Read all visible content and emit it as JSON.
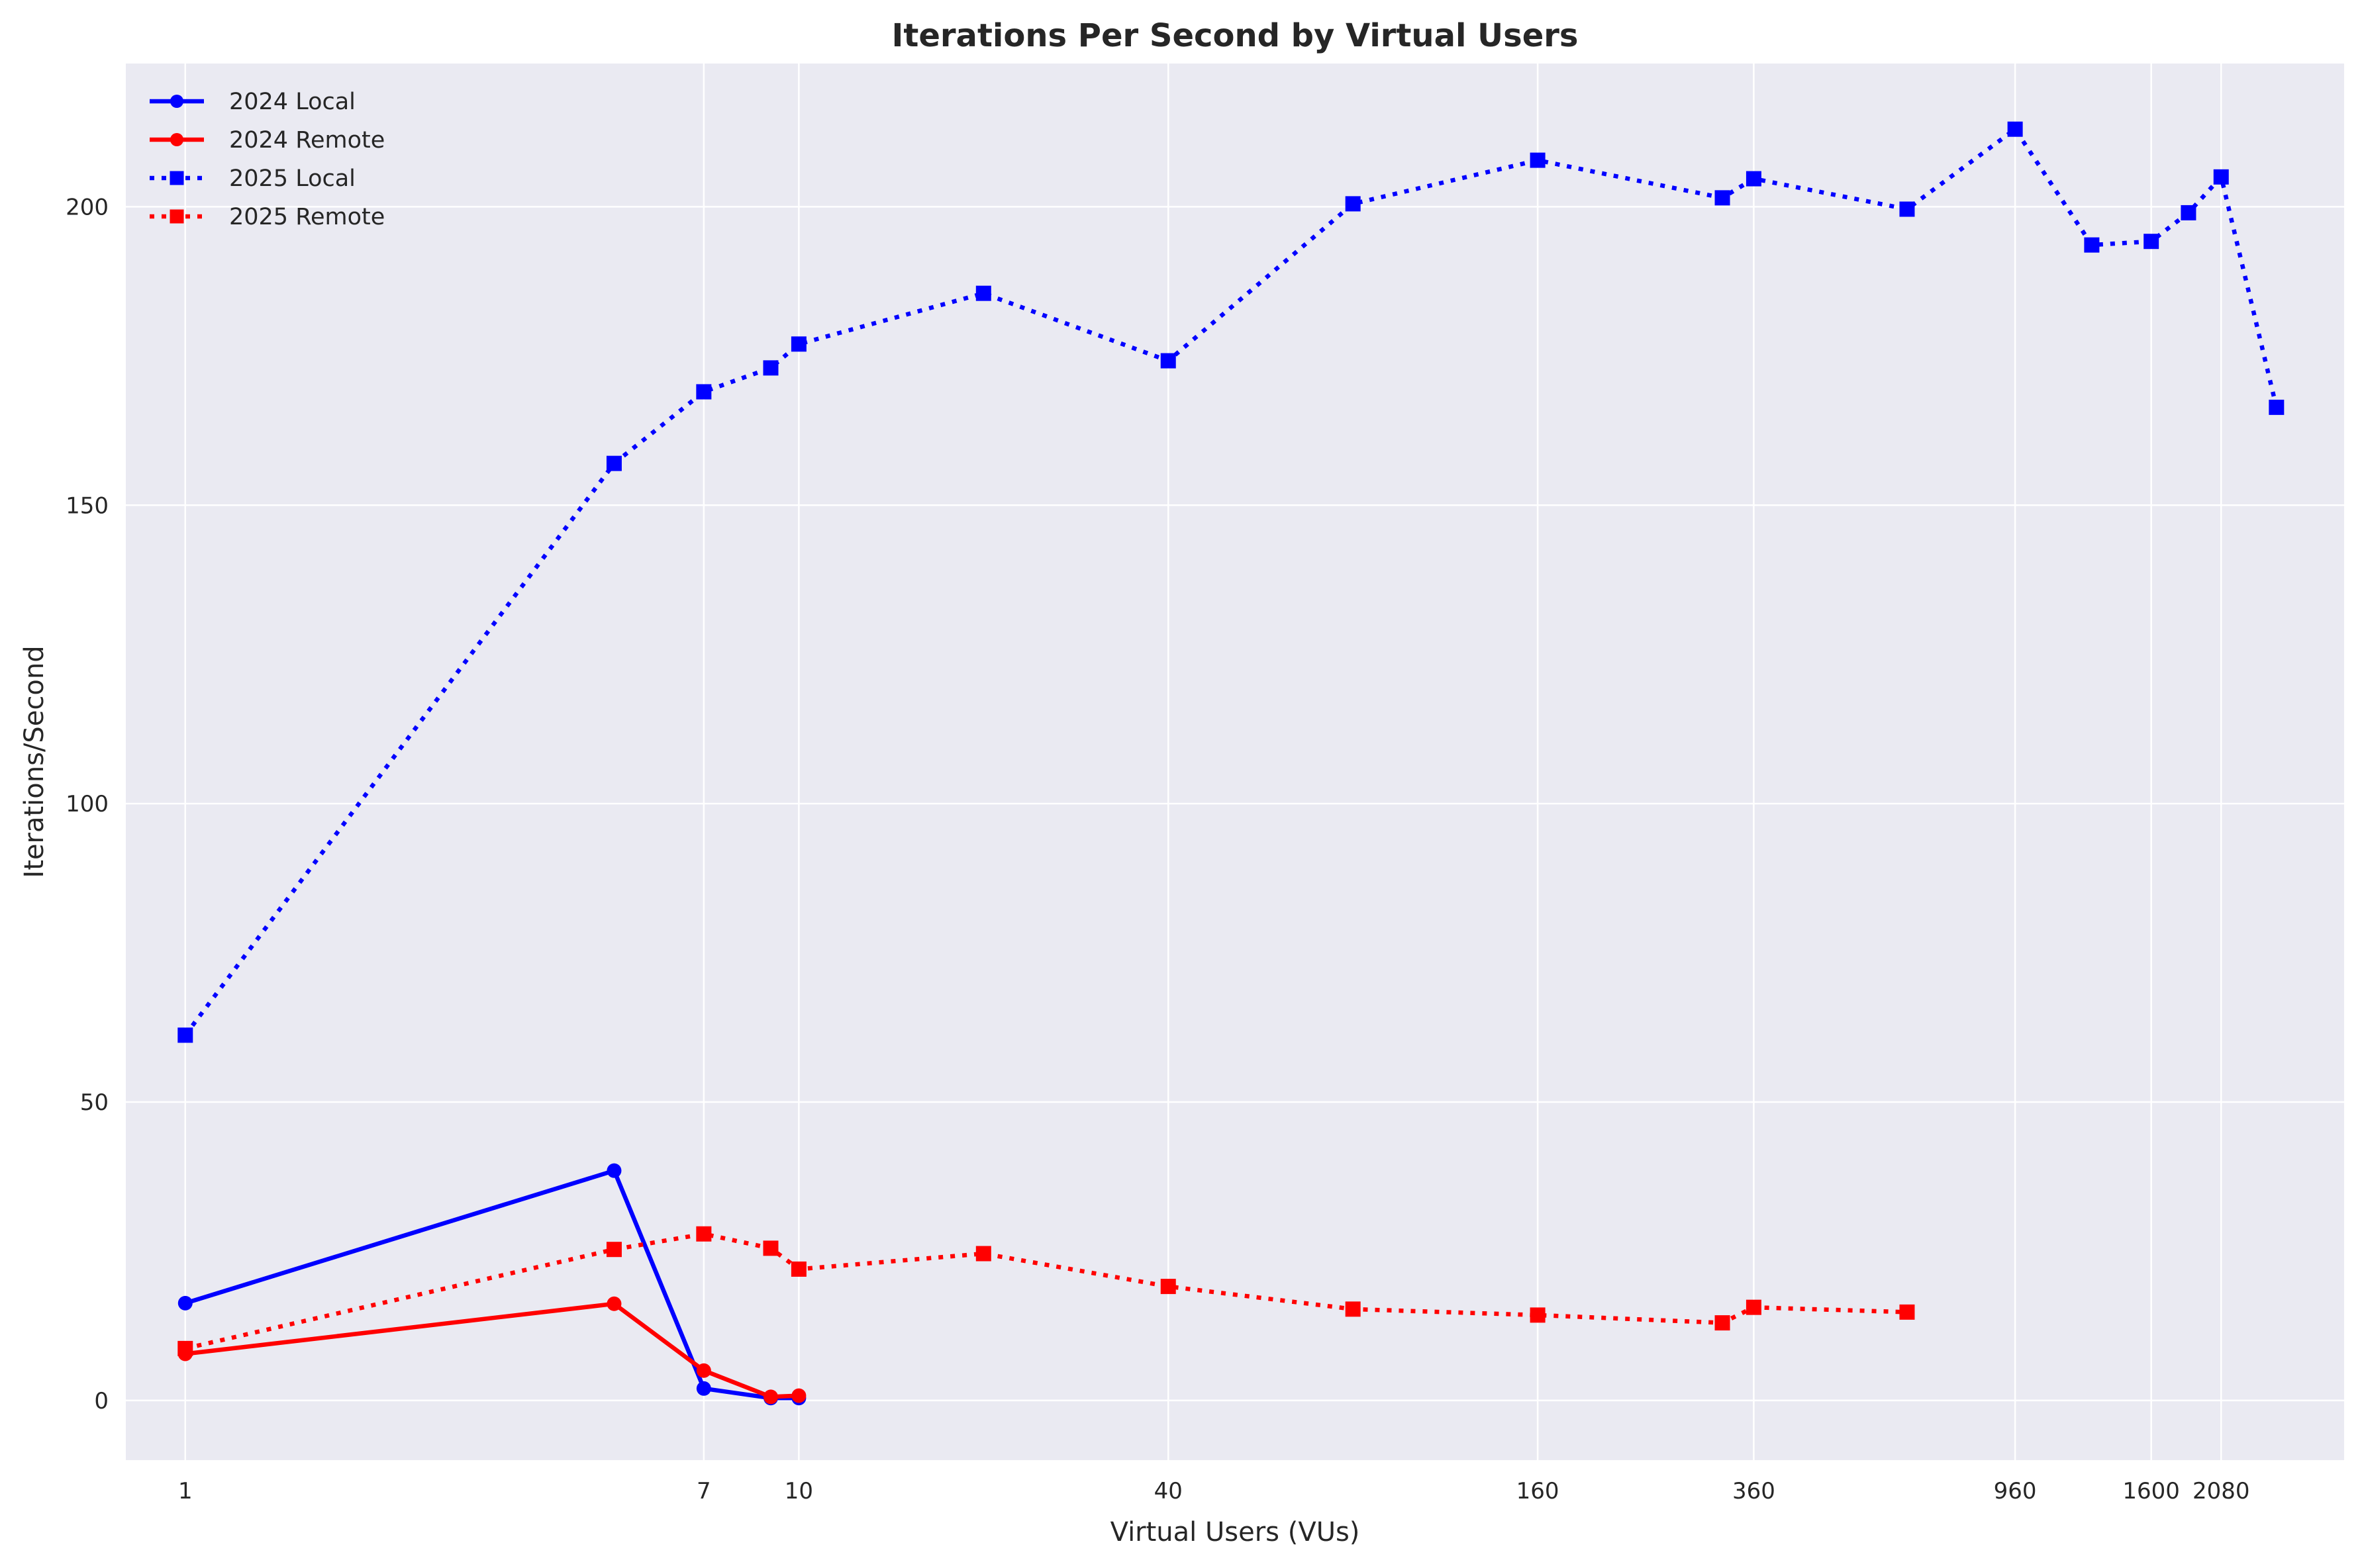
{
  "chart_data": {
    "type": "line",
    "title": "Iterations Per Second by Virtual Users",
    "xlabel": "Virtual Users (VUs)",
    "ylabel": "Iterations/Second",
    "x_scale": "log",
    "xlim": [
      0.8,
      3300
    ],
    "ylim": [
      -10,
      224
    ],
    "x_ticks": [
      1,
      7,
      10,
      40,
      160,
      360,
      960,
      1600,
      2080
    ],
    "x_tick_labels": [
      "1",
      "7",
      "10",
      "40",
      "160",
      "360",
      "960",
      "1600",
      "2080"
    ],
    "y_ticks": [
      0,
      50,
      100,
      150,
      200
    ],
    "y_tick_labels": [
      "0",
      "50",
      "100",
      "150",
      "200"
    ],
    "grid": true,
    "legend_position": "top-left",
    "background_color": "#eaeaf2",
    "grid_color": "#ffffff",
    "series": [
      {
        "name": "2024 Local",
        "color": "#0000ff",
        "line_style": "solid",
        "marker": "circle",
        "x": [
          1,
          5,
          7,
          9,
          10
        ],
        "y": [
          16.3,
          38.5,
          2.0,
          0.4,
          0.4
        ]
      },
      {
        "name": "2024 Remote",
        "color": "#ff0000",
        "line_style": "solid",
        "marker": "circle",
        "x": [
          1,
          5,
          7,
          9,
          10
        ],
        "y": [
          7.8,
          16.2,
          5.0,
          0.6,
          0.8
        ]
      },
      {
        "name": "2025 Local",
        "color": "#0000ff",
        "line_style": "dotted",
        "marker": "square",
        "x": [
          1,
          5,
          7,
          9,
          10,
          20,
          40,
          80,
          160,
          320,
          360,
          640,
          960,
          1280,
          1600,
          1840,
          2080,
          2560
        ],
        "y": [
          61.2,
          157.0,
          169.0,
          173.0,
          177.0,
          185.5,
          174.2,
          200.5,
          207.8,
          201.5,
          204.7,
          199.6,
          213.0,
          193.6,
          194.2,
          199.0,
          205.0,
          166.4
        ]
      },
      {
        "name": "2025 Remote",
        "color": "#ff0000",
        "line_style": "dotted",
        "marker": "square",
        "x": [
          1,
          5,
          7,
          9,
          10,
          20,
          40,
          80,
          160,
          320,
          360,
          640
        ],
        "y": [
          8.7,
          25.3,
          27.9,
          25.5,
          22.0,
          24.6,
          19.1,
          15.3,
          14.3,
          13.0,
          15.6,
          14.8
        ]
      }
    ]
  }
}
